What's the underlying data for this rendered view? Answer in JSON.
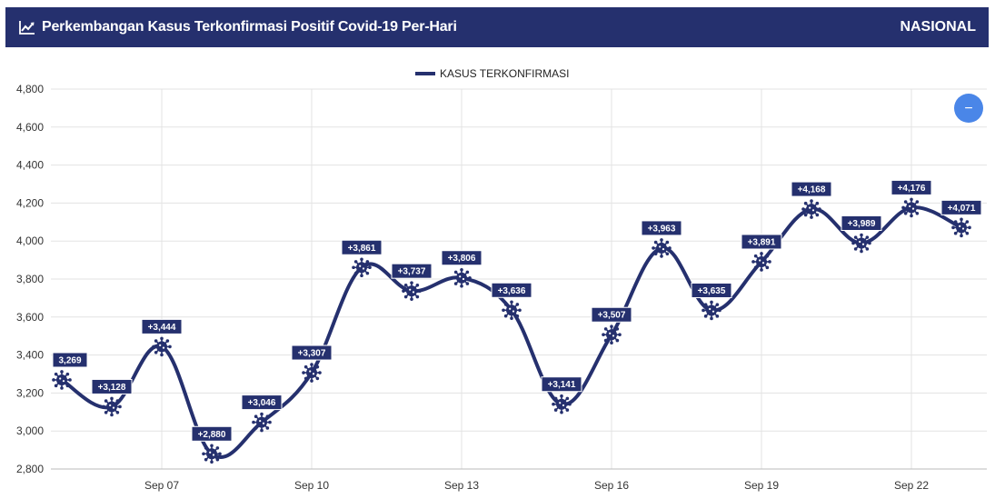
{
  "header": {
    "title": "Perkembangan Kasus Terkonfirmasi Positif Covid-19 Per-Hari",
    "region": "NASIONAL",
    "icon": "line-chart-icon"
  },
  "colors": {
    "primary": "#25306e",
    "zoom_button": "#4a86e8"
  },
  "chart_data": {
    "type": "line",
    "title": "",
    "xlabel": "",
    "ylabel": "",
    "legend": {
      "position": "top-center",
      "entries": [
        "KASUS TERKONFIRMASI"
      ]
    },
    "grid": true,
    "ylim": [
      2800,
      4800
    ],
    "yticks": [
      "2,800",
      "3,000",
      "3,200",
      "3,400",
      "3,600",
      "3,800",
      "4,000",
      "4,200",
      "4,400",
      "4,600",
      "4,800"
    ],
    "xtick_labels": [
      "Sep 07",
      "Sep 10",
      "Sep 13",
      "Sep 16",
      "Sep 19",
      "Sep 22"
    ],
    "categories": [
      "Sep 05",
      "Sep 06",
      "Sep 07",
      "Sep 08",
      "Sep 09",
      "Sep 10",
      "Sep 11",
      "Sep 12",
      "Sep 13",
      "Sep 14",
      "Sep 15",
      "Sep 16",
      "Sep 17",
      "Sep 18",
      "Sep 19",
      "Sep 20",
      "Sep 21",
      "Sep 22",
      "Sep 23"
    ],
    "series": [
      {
        "name": "KASUS TERKONFIRMASI",
        "values": [
          3269,
          3128,
          3444,
          2880,
          3046,
          3307,
          3861,
          3737,
          3806,
          3636,
          3141,
          3507,
          3963,
          3635,
          3891,
          4168,
          3989,
          4176,
          4071
        ],
        "labels": [
          "3,269",
          "+3,128",
          "+3,444",
          "+2,880",
          "+3,046",
          "+3,307",
          "+3,861",
          "+3,737",
          "+3,806",
          "+3,636",
          "+3,141",
          "+3,507",
          "+3,963",
          "+3,635",
          "+3,891",
          "+4,168",
          "+3,989",
          "+4,176",
          "+4,071"
        ]
      }
    ]
  },
  "zoom_button": {
    "label": "−",
    "icon": "zoom-out-icon"
  }
}
